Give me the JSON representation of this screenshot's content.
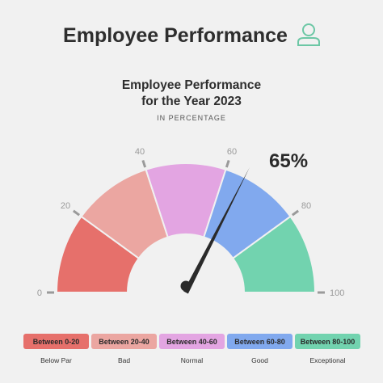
{
  "header": {
    "title": "Employee Performance",
    "icon": "person-outline-icon",
    "icon_color": "#6cc7a5"
  },
  "chart_data": {
    "type": "gauge",
    "title_line1": "Employee Performance",
    "title_line2": "for the Year 2023",
    "subtitle": "IN PERCENTAGE",
    "value": 65,
    "value_label": "65%",
    "range": [
      0,
      100
    ],
    "ticks": [
      "0",
      "20",
      "40",
      "60",
      "80",
      "100"
    ],
    "bands": [
      {
        "from": 0,
        "to": 20,
        "label": "Between 0-20",
        "description": "Below Par",
        "color": "#e6706b"
      },
      {
        "from": 20,
        "to": 40,
        "label": "Between 20-40",
        "description": "Bad",
        "color": "#eba6a1"
      },
      {
        "from": 40,
        "to": 60,
        "label": "Between 40-60",
        "description": "Normal",
        "color": "#e3a5e2"
      },
      {
        "from": 60,
        "to": 80,
        "label": "Between 60-80",
        "description": "Good",
        "color": "#81a9ee"
      },
      {
        "from": 80,
        "to": 100,
        "label": "Between 80-100",
        "description": "Exceptional",
        "color": "#72d3af"
      }
    ]
  }
}
